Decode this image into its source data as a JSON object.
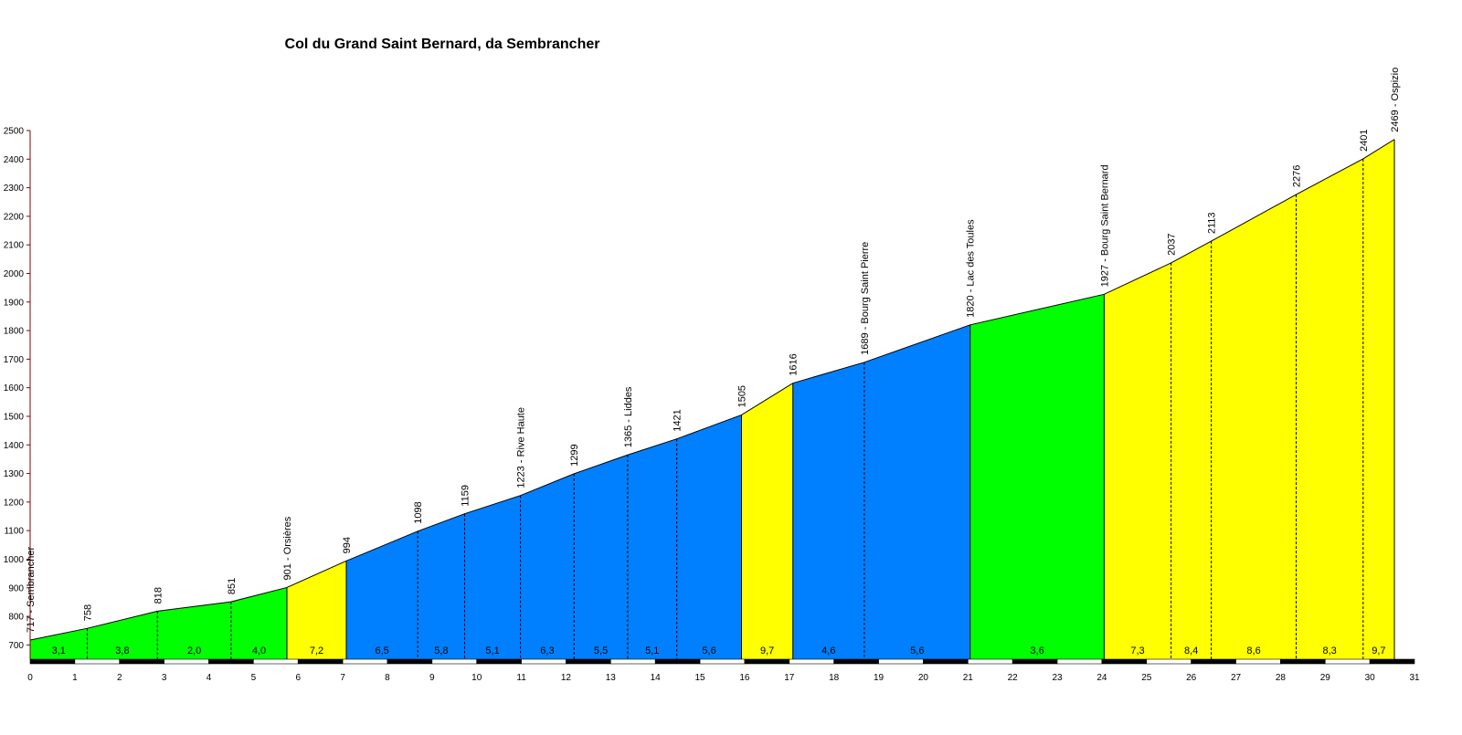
{
  "chart_data": {
    "type": "area",
    "title": "Col du Grand Saint Bernard, da Sembrancher",
    "xlabel": "",
    "ylabel": "",
    "xlim": [
      0,
      31
    ],
    "ylim": [
      650,
      2500
    ],
    "x_ticks": [
      0,
      1,
      2,
      3,
      4,
      5,
      6,
      7,
      8,
      9,
      10,
      11,
      12,
      13,
      14,
      15,
      16,
      17,
      18,
      19,
      20,
      21,
      22,
      23,
      24,
      25,
      26,
      27,
      28,
      29,
      30,
      31
    ],
    "y_ticks": [
      700,
      800,
      900,
      1000,
      1100,
      1200,
      1300,
      1400,
      1500,
      1600,
      1700,
      1800,
      1900,
      2000,
      2100,
      2200,
      2300,
      2400,
      2500
    ],
    "points": [
      {
        "km": 0.0,
        "alt": 717,
        "label": "717 - Sembrancher"
      },
      {
        "km": 1.28,
        "alt": 758,
        "label": "758"
      },
      {
        "km": 2.85,
        "alt": 818,
        "label": "818"
      },
      {
        "km": 4.5,
        "alt": 851,
        "label": "851"
      },
      {
        "km": 5.75,
        "alt": 901,
        "label": "901 - Orsières"
      },
      {
        "km": 7.08,
        "alt": 994,
        "label": "994"
      },
      {
        "km": 8.68,
        "alt": 1098,
        "label": "1098"
      },
      {
        "km": 9.73,
        "alt": 1159,
        "label": "1159"
      },
      {
        "km": 10.98,
        "alt": 1223,
        "label": "1223 - Rive Haute"
      },
      {
        "km": 12.18,
        "alt": 1299,
        "label": "1299"
      },
      {
        "km": 13.38,
        "alt": 1365,
        "label": "1365 - Liddes"
      },
      {
        "km": 14.48,
        "alt": 1421,
        "label": "1421"
      },
      {
        "km": 15.93,
        "alt": 1505,
        "label": "1505"
      },
      {
        "km": 17.08,
        "alt": 1616,
        "label": "1616"
      },
      {
        "km": 18.68,
        "alt": 1689,
        "label": "1689 - Bourg Saint Pierre"
      },
      {
        "km": 21.05,
        "alt": 1820,
        "label": "1820 - Lac des Toules"
      },
      {
        "km": 24.05,
        "alt": 1927,
        "label": "1927 - Bourg Saint Bernard"
      },
      {
        "km": 25.55,
        "alt": 2037,
        "label": "2037"
      },
      {
        "km": 26.45,
        "alt": 2113,
        "label": "2113"
      },
      {
        "km": 28.35,
        "alt": 2276,
        "label": "2276"
      },
      {
        "km": 29.85,
        "alt": 2401,
        "label": "2401"
      },
      {
        "km": 30.55,
        "alt": 2469,
        "label": "2469 - Ospizio"
      }
    ],
    "segments": [
      {
        "gradient": "3,1",
        "color": "#00ff00"
      },
      {
        "gradient": "3,8",
        "color": "#00ff00"
      },
      {
        "gradient": "2,0",
        "color": "#00ff00"
      },
      {
        "gradient": "4,0",
        "color": "#00ff00"
      },
      {
        "gradient": "7,2",
        "color": "#ffff00"
      },
      {
        "gradient": "6,5",
        "color": "#0080ff"
      },
      {
        "gradient": "5,8",
        "color": "#0080ff"
      },
      {
        "gradient": "5,1",
        "color": "#0080ff"
      },
      {
        "gradient": "6,3",
        "color": "#0080ff"
      },
      {
        "gradient": "5,5",
        "color": "#0080ff"
      },
      {
        "gradient": "5,1",
        "color": "#0080ff"
      },
      {
        "gradient": "5,6",
        "color": "#0080ff"
      },
      {
        "gradient": "9,7",
        "color": "#ffff00"
      },
      {
        "gradient": "4,6",
        "color": "#0080ff"
      },
      {
        "gradient": "5,6",
        "color": "#0080ff"
      },
      {
        "gradient": "3,6",
        "color": "#00ff00"
      },
      {
        "gradient": "7,3",
        "color": "#ffff00"
      },
      {
        "gradient": "8,4",
        "color": "#ffff00"
      },
      {
        "gradient": "8,6",
        "color": "#ffff00"
      },
      {
        "gradient": "8,3",
        "color": "#ffff00"
      },
      {
        "gradient": "9,7",
        "color": "#ffff00"
      }
    ],
    "colors": {
      "axis": "#800000",
      "profile_line": "#000000",
      "km_bar_dark": "#000000",
      "km_bar_light": "#ffffff"
    }
  }
}
